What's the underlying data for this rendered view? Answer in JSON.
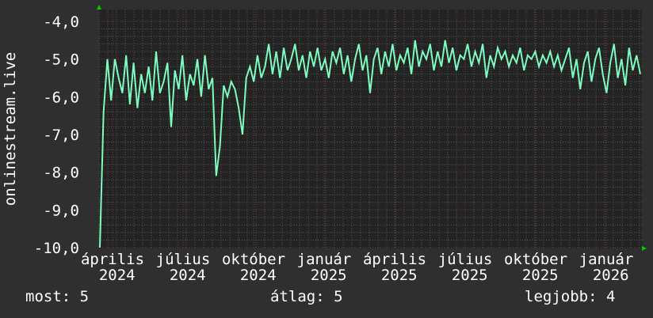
{
  "chart_data": {
    "type": "line",
    "title": "",
    "ylabel": "onlinestream.live",
    "xlabel": "",
    "ylim": [
      -10,
      -4
    ],
    "yticks": [
      "-10,0",
      "-9,0",
      "-8,0",
      "-7,0",
      "-6,0",
      "-5,0",
      "-4,0"
    ],
    "xticks": [
      "április 2024",
      "július 2024",
      "október 2024",
      "január 2025",
      "április 2025",
      "július 2025",
      "október 2025",
      "január 2026"
    ],
    "x_range": [
      "2024-03",
      "2026-02"
    ],
    "grid": true,
    "line_color": "#7dfcbf",
    "values": [
      -10,
      -6.4,
      -5,
      -6.1,
      -5,
      -5.5,
      -5.9,
      -4.9,
      -6.2,
      -5.1,
      -6.3,
      -5.4,
      -5.9,
      -5.2,
      -6.1,
      -4.8,
      -5.9,
      -5.6,
      -5.1,
      -6.8,
      -5.3,
      -5.8,
      -4.9,
      -6.1,
      -5.4,
      -5.7,
      -5.0,
      -6.0,
      -4.9,
      -5.8,
      -5.5,
      -8.1,
      -7.3,
      -5.7,
      -6.0,
      -5.6,
      -5.8,
      -6.3,
      -7.0,
      -5.5,
      -5.2,
      -5.6,
      -4.9,
      -5.5,
      -5.2,
      -4.6,
      -5.4,
      -4.8,
      -5.5,
      -4.7,
      -5.3,
      -5.0,
      -4.6,
      -5.3,
      -4.9,
      -5.5,
      -4.8,
      -5.2,
      -4.7,
      -5.3,
      -5.0,
      -5.5,
      -4.8,
      -5.1,
      -4.7,
      -5.4,
      -4.9,
      -5.6,
      -5.0,
      -4.6,
      -5.3,
      -4.9,
      -5.9,
      -5.0,
      -4.7,
      -5.4,
      -4.8,
      -5.2,
      -4.6,
      -5.3,
      -4.9,
      -5.1,
      -4.7,
      -5.4,
      -4.5,
      -5.2,
      -4.8,
      -5.0,
      -4.6,
      -5.3,
      -4.8,
      -5.2,
      -4.5,
      -5.1,
      -4.7,
      -5.3,
      -4.9,
      -5.0,
      -4.6,
      -5.2,
      -4.8,
      -5.1,
      -4.6,
      -5.5,
      -4.9,
      -5.2,
      -4.7,
      -5.0,
      -4.8,
      -5.2,
      -4.9,
      -5.1,
      -4.7,
      -5.3,
      -4.9,
      -5.0,
      -4.8,
      -5.2,
      -4.9,
      -5.1,
      -4.8,
      -5.2,
      -4.9,
      -5.3,
      -5.0,
      -4.7,
      -5.5,
      -5.0,
      -5.8,
      -5.1,
      -4.8,
      -5.6,
      -5.0,
      -4.7,
      -5.4,
      -5.9,
      -5.1,
      -4.6,
      -5.5,
      -5.0,
      -5.7,
      -4.7,
      -5.3,
      -4.9,
      -5.4
    ]
  },
  "legend": {
    "current": "most: 5",
    "average": "átlag: 5",
    "best": "legjobb: 4"
  }
}
